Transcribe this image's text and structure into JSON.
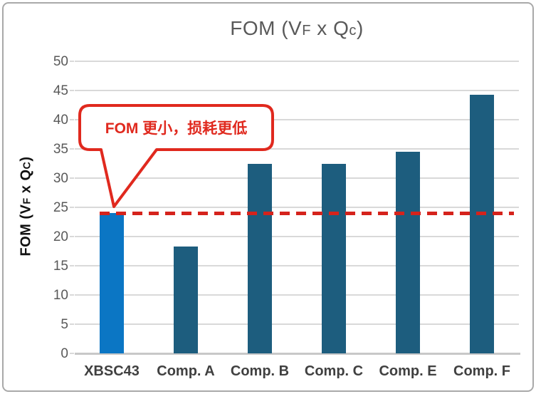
{
  "chart_data": {
    "type": "bar",
    "title": "FOM (VF x Qc)",
    "categories": [
      "XBSC43",
      "Comp. A",
      "Comp. B",
      "Comp. C",
      "Comp. E",
      "Comp. F"
    ],
    "values": [
      24,
      18.3,
      32.4,
      32.4,
      34.5,
      44.3
    ],
    "bar_colors": [
      "#0b76c4",
      "#1d5d7e",
      "#1d5d7e",
      "#1d5d7e",
      "#1d5d7e",
      "#1d5d7e"
    ],
    "xlabel": "",
    "ylabel": "FOM (VF x Qc)",
    "ylim": [
      0,
      50
    ],
    "ytick_step": 5,
    "yticks": [
      0,
      5,
      10,
      15,
      20,
      25,
      30,
      35,
      40,
      45,
      50
    ],
    "grid": true,
    "legend": "none",
    "reference_line": {
      "value": 24,
      "style": "dashed",
      "color": "#d5231c",
      "note": "level of XBSC43 bar top"
    },
    "annotation": {
      "text": "FOM 更小，损耗更低",
      "points_to": "XBSC43",
      "color": "#e0291e"
    }
  },
  "title_segments": {
    "p1": "FOM (V",
    "sub_f": "F",
    "p2": " x Q",
    "sub_c": "c",
    "p3": ")"
  },
  "y_title_segments": {
    "p1": "FOM (V",
    "sub_f": "F",
    "p2": " x Q",
    "sub_c": "C",
    "p3": ")"
  },
  "annotation": {
    "callout_text": "FOM 更小，损耗更低"
  },
  "colors": {
    "highlight_bar": "#0b76c4",
    "competitor_bar": "#1d5d7e",
    "reference_red": "#d5231c",
    "callout_red": "#e0291e",
    "title_gray": "#595959",
    "grid_gray": "#d9d9d9",
    "frame_gray": "#a9a9a9"
  }
}
